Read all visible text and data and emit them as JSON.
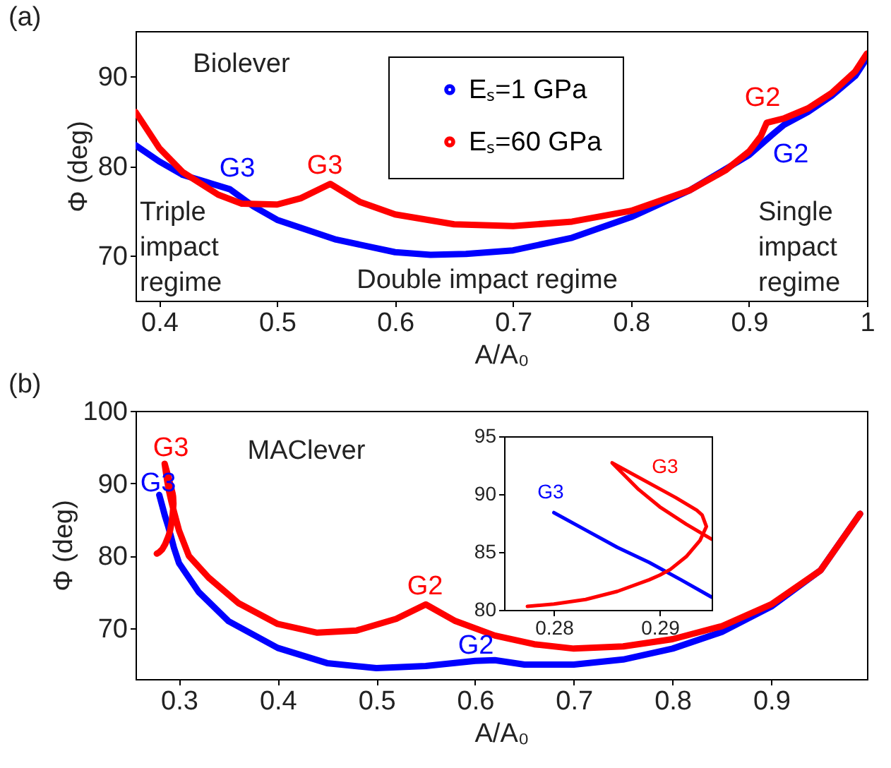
{
  "chart_data": [
    {
      "type": "line",
      "title": "(a)",
      "xlabel": "A/A₀",
      "ylabel": "Φ (deg)",
      "xlim": [
        0.38,
        1
      ],
      "ylim": [
        65,
        95
      ],
      "xticks": [
        0.4,
        0.5,
        0.6,
        0.7,
        0.8,
        0.9,
        1
      ],
      "yticks": [
        70,
        80,
        90
      ],
      "legend": "top",
      "annotations": [
        "Biolever",
        "Triple impact regime",
        "Double impact regime",
        "Single impact regime",
        "G3",
        "G3",
        "G2",
        "G2"
      ],
      "series": [
        {
          "name": "Eₛ=1 GPa",
          "color": "#0000ff",
          "x": [
            0.38,
            0.4,
            0.42,
            0.44,
            0.46,
            0.48,
            0.5,
            0.55,
            0.6,
            0.63,
            0.66,
            0.7,
            0.75,
            0.8,
            0.85,
            0.9,
            0.92,
            0.93,
            0.95,
            0.97,
            0.99,
            1
          ],
          "values": [
            82.3,
            80.5,
            79,
            78.2,
            77.4,
            75.5,
            74,
            71.8,
            70.4,
            70.1,
            70.2,
            70.6,
            72,
            74.3,
            77.3,
            81.2,
            83.5,
            84.6,
            86,
            87.8,
            90,
            92
          ]
        },
        {
          "name": "Eₛ=60 GPa",
          "color": "#ff0000",
          "x": [
            0.38,
            0.4,
            0.42,
            0.45,
            0.47,
            0.5,
            0.52,
            0.545,
            0.57,
            0.6,
            0.65,
            0.7,
            0.75,
            0.8,
            0.85,
            0.88,
            0.9,
            0.91,
            0.915,
            0.93,
            0.95,
            0.97,
            0.99,
            1
          ],
          "values": [
            86,
            82,
            79.3,
            76.8,
            75.8,
            75.7,
            76.4,
            78,
            76,
            74.6,
            73.5,
            73.3,
            73.8,
            75,
            77.3,
            79.5,
            81.6,
            83.3,
            84.8,
            85.3,
            86.4,
            88.1,
            90.5,
            92.5
          ]
        }
      ]
    },
    {
      "type": "line",
      "title": "(b)",
      "xlabel": "A/A₀",
      "ylabel": "Φ (deg)",
      "xlim": [
        0.256,
        0.997
      ],
      "ylim": [
        63,
        100
      ],
      "xticks": [
        0.3,
        0.4,
        0.5,
        0.6,
        0.7,
        0.8,
        0.9
      ],
      "yticks": [
        70,
        80,
        90,
        100
      ],
      "annotations": [
        "MAClever",
        "G3",
        "G3",
        "G2",
        "G2"
      ],
      "series": [
        {
          "color": "#0000ff",
          "x": [
            0.28,
            0.283,
            0.286,
            0.289,
            0.292,
            0.2949,
            0.3,
            0.32,
            0.35,
            0.4,
            0.45,
            0.5,
            0.55,
            0.6,
            0.62,
            0.65,
            0.7,
            0.75,
            0.8,
            0.85,
            0.9,
            0.95,
            0.99
          ],
          "values": [
            88.4,
            86.9,
            85.4,
            84.1,
            82.6,
            81.1,
            79,
            75,
            71,
            67.3,
            65.2,
            64.5,
            64.8,
            65.5,
            65.6,
            65,
            65,
            65.7,
            67.2,
            69.5,
            73,
            78,
            85.8
          ]
        },
        {
          "color": "#ff0000",
          "x": [
            0.2775,
            0.28,
            0.283,
            0.286,
            0.289,
            0.29,
            0.291,
            0.2925,
            0.2938,
            0.2944,
            0.294,
            0.2935,
            0.2915,
            0.2855,
            0.288,
            0.29,
            0.2925,
            0.2949,
            0.3,
            0.31,
            0.33,
            0.36,
            0.4,
            0.44,
            0.48,
            0.52,
            0.55,
            0.58,
            0.62,
            0.66,
            0.7,
            0.75,
            0.8,
            0.85,
            0.9,
            0.95,
            0.99
          ],
          "values": [
            80.3,
            80.5,
            80.9,
            81.6,
            82.6,
            83,
            83.5,
            84.6,
            86,
            87.2,
            88.2,
            88.6,
            89.7,
            92.7,
            90.4,
            88.9,
            87.4,
            86.1,
            83.5,
            80,
            77,
            73.5,
            70.6,
            69.4,
            69.7,
            71.3,
            73.3,
            71,
            69,
            67.8,
            67.2,
            67.5,
            68.5,
            70.3,
            73.3,
            78,
            85.8
          ]
        }
      ]
    },
    {
      "type": "line",
      "xlim": [
        0.2753,
        0.2949
      ],
      "ylim": [
        80,
        95
      ],
      "xticks": [
        0.28,
        0.29
      ],
      "yticks": [
        80,
        85,
        90,
        95
      ],
      "annotations": [
        "G3",
        "G3"
      ],
      "series": [
        {
          "color": "#0000ff",
          "x": [
            0.28,
            0.283,
            0.286,
            0.289,
            0.292,
            0.2949
          ],
          "values": [
            88.4,
            86.9,
            85.4,
            84.1,
            82.6,
            81.1
          ]
        },
        {
          "color": "#ff0000",
          "x": [
            0.2775,
            0.28,
            0.283,
            0.286,
            0.289,
            0.29,
            0.291,
            0.2925,
            0.2938,
            0.2944,
            0.294,
            0.2935,
            0.2915,
            0.2855,
            0.288,
            0.29,
            0.2925,
            0.2949
          ],
          "values": [
            80.3,
            80.5,
            80.9,
            81.6,
            82.6,
            83,
            83.5,
            84.6,
            86,
            87.2,
            88.2,
            88.6,
            89.7,
            92.7,
            90.4,
            88.9,
            87.4,
            86.1
          ]
        }
      ]
    }
  ]
}
